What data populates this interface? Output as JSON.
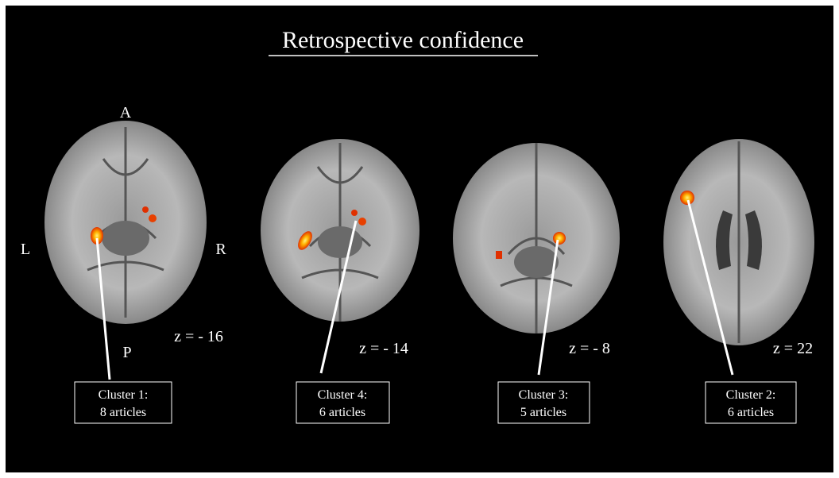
{
  "title": "Retrospective confidence",
  "orientation": {
    "anterior": "A",
    "posterior": "P",
    "left": "L",
    "right": "R"
  },
  "slices": [
    {
      "z_label": "z = - 16",
      "cluster": {
        "name": "Cluster 1:",
        "articles": "8 articles"
      }
    },
    {
      "z_label": "z = - 14",
      "cluster": {
        "name": "Cluster 4:",
        "articles": "6 articles"
      }
    },
    {
      "z_label": "z = - 8",
      "cluster": {
        "name": "Cluster 3:",
        "articles": "5 articles"
      }
    },
    {
      "z_label": "z = 22",
      "cluster": {
        "name": "Cluster 2:",
        "articles": "6 articles"
      }
    }
  ]
}
